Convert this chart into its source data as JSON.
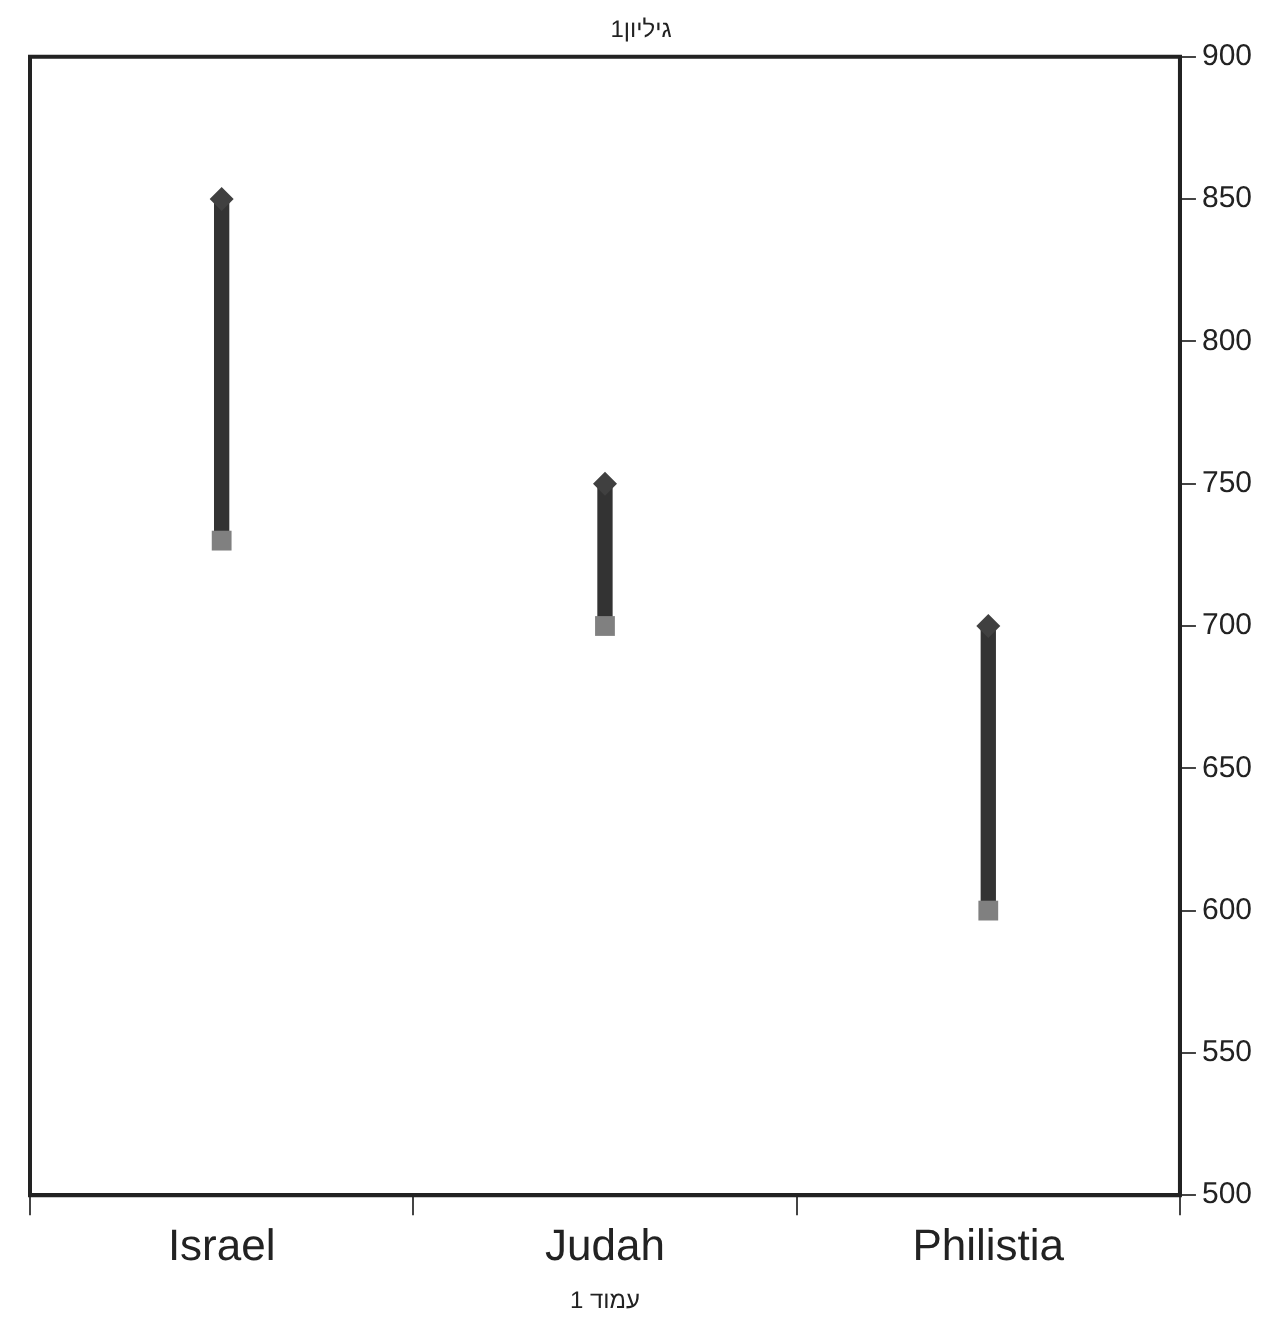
{
  "chart_data": {
    "type": "bar",
    "title": "גיליון1",
    "annotations": [
      "עמוד 1"
    ],
    "categories": [
      "Israel",
      "Judah",
      "Philistia"
    ],
    "series": [
      {
        "color": "#333333",
        "values": [
          120,
          50,
          100
        ],
        "base": [
          730,
          700,
          600
        ]
      },
      {
        "type": "scatter",
        "marker": "diamond",
        "color": "#404040",
        "x": [
          "Israel",
          "Judah",
          "Philistia"
        ],
        "values": [
          850,
          750,
          700
        ]
      },
      {
        "type": "scatter",
        "marker": "square",
        "color": "#808080",
        "x": [
          "Israel",
          "Judah",
          "Philistia"
        ],
        "values": [
          730,
          700,
          600
        ]
      }
    ],
    "ylim": [
      500,
      900
    ],
    "yticks": [
      500,
      550,
      600,
      650,
      700,
      750,
      800,
      850,
      900
    ],
    "grid": false,
    "legend": false
  }
}
